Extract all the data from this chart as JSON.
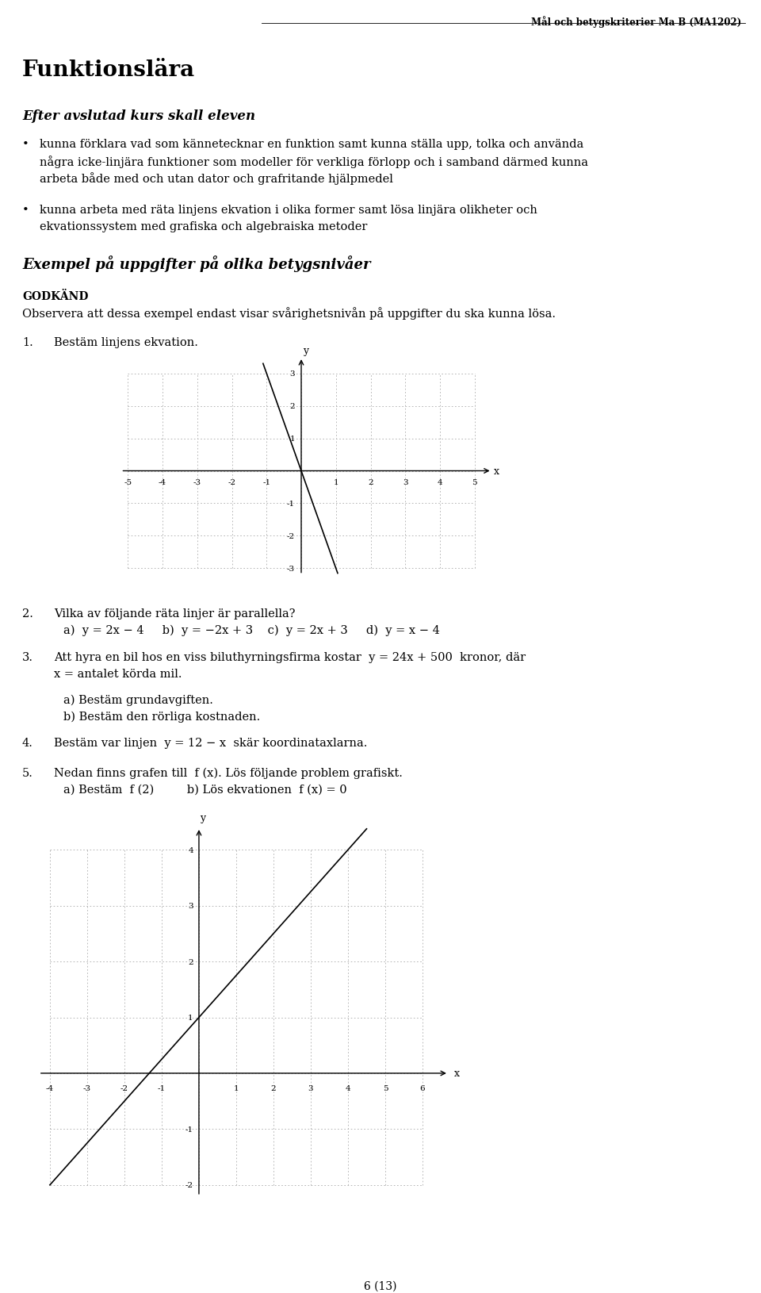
{
  "header": "Mål och betygskriterier Ma B (MA1202)",
  "title": "Funktionslära",
  "subtitle": "Efter avslutad kurs skall eleven",
  "bullet1_lines": [
    "kunna förklara vad som kännetecknar en funktion samt kunna ställa upp, tolka och använda",
    "några icke-linjära funktioner som modeller för verkliga förlopp och i samband därmed kunna",
    "arbeta både med och utan dator och grafritande hjälpmedel"
  ],
  "bullet2_lines": [
    "kunna arbeta med räta linjens ekvation i olika former samt lösa linjära olikheter och",
    "ekvationssystem med grafiska och algebraiska metoder"
  ],
  "section_title": "Exempel på uppgifter på olika betygsnivåer",
  "godkand_label": "Godkänd",
  "godkand_note": "Observera att dessa exempel endast visar svårighetsnivån på uppgifter du ska kunna lösa.",
  "q1": "Bestäm linjens ekvation.",
  "q2": "Vilka av följande räta linjer är parallella?",
  "q2_opts": "a)  y = 2x − 4     b)  y = −2x + 3    c)  y = 2x + 3     d)  y = x − 4",
  "q3_line1": "Att hyra en bil hos en viss biluthyrningsfirma kostar  y = 24x + 500  kronor, där",
  "q3_line2": "x = antalet körda mil.",
  "q3a": "a) Bestäm grundavgiften.",
  "q3b": "b) Bestäm den rörliga kostnaden.",
  "q4": "Bestäm var linjen  y = 12 − x  skär koordinataxlarna.",
  "q5": "Nedan finns grafen till  f (x). Lös följande problem grafiskt.",
  "q5ab": "a) Bestäm  f (2)         b) Lös ekvationen  f (x) = 0",
  "footer": "6 (13)",
  "bg_color": "#ffffff",
  "text_color": "#000000",
  "line_color": "#000000",
  "grid_color": "#aaaaaa"
}
